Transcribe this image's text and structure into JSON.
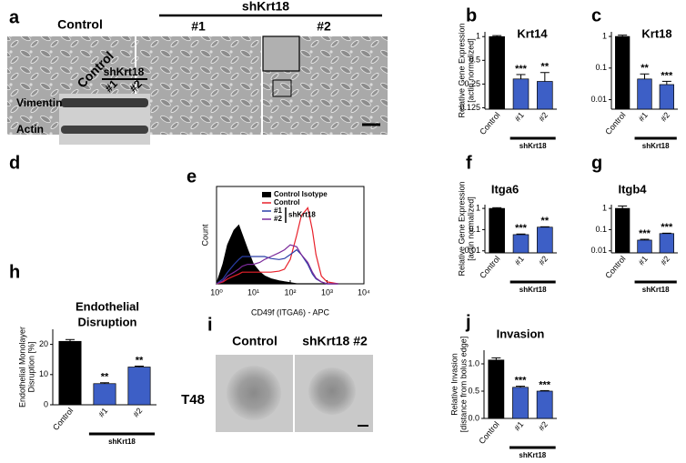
{
  "panel_a": {
    "letter": "a",
    "columns": [
      "Control",
      "#1",
      "#2"
    ],
    "group_label": "shKrt18"
  },
  "panel_d": {
    "letter": "d",
    "lanes": [
      "Control",
      "#1",
      "#2"
    ],
    "group_label": "shKrt18",
    "rows": [
      "Vimentin",
      "Actin"
    ]
  },
  "panel_i": {
    "letter": "i",
    "columns": [
      "Control",
      "shKrt18 #2"
    ],
    "row_label": "T48"
  },
  "chart_data": [
    {
      "type": "bar",
      "letter": "b",
      "title": [
        "Krt14"
      ],
      "ylabel": [
        "Relative Gene Expression",
        "[actin normalized]"
      ],
      "categories": [
        "Control",
        "#1",
        "#2"
      ],
      "group_label": "shKrt18",
      "values": [
        1.0,
        0.29,
        0.27
      ],
      "errors": [
        0.03,
        0.04,
        0.08
      ],
      "annotations": [
        null,
        "***",
        "**"
      ],
      "colors": [
        "#000000",
        "#3d5fc6",
        "#3d5fc6"
      ],
      "log": true,
      "ylim": [
        0.12,
        1.15
      ],
      "yticks": [
        1,
        0.5,
        0.25,
        0.125
      ]
    },
    {
      "type": "bar",
      "letter": "c",
      "title": [
        "Krt18"
      ],
      "ylabel": [],
      "categories": [
        "Control",
        "#1",
        "#2"
      ],
      "group_label": "shKrt18",
      "values": [
        1.0,
        0.045,
        0.03
      ],
      "errors": [
        0.1,
        0.02,
        0.008
      ],
      "annotations": [
        null,
        "**",
        "***"
      ],
      "colors": [
        "#000000",
        "#3d5fc6",
        "#3d5fc6"
      ],
      "log": true,
      "ylim": [
        0.005,
        1.4
      ],
      "yticks": [
        1,
        0.1,
        0.01
      ]
    },
    {
      "type": "line",
      "letter": "e",
      "xlabel": "CD49f (ITGA6) - APC",
      "ylabel": "Count",
      "log_x": true,
      "legend_group_label": "shKrt18",
      "x": [
        1,
        1.5,
        2,
        3,
        4,
        5,
        7,
        10,
        15,
        20,
        30,
        50,
        70,
        100,
        150,
        200,
        300,
        400,
        500,
        700,
        1000,
        2000
      ],
      "xlim": [
        1,
        10000
      ],
      "xticks": [
        {
          "value": 1,
          "label": "10⁰"
        },
        {
          "value": 10,
          "label": "10¹"
        },
        {
          "value": 100,
          "label": "10²"
        },
        {
          "value": 1000,
          "label": "10³"
        },
        {
          "value": 10000,
          "label": "10⁴"
        }
      ],
      "ylim": [
        0,
        100
      ],
      "series": [
        {
          "name": "Control Isotype",
          "color": "#000000",
          "filled": true,
          "values": [
            0,
            20,
            40,
            55,
            60,
            50,
            35,
            20,
            12,
            8,
            5,
            3,
            2,
            1,
            0,
            0,
            0,
            0,
            0,
            0,
            0,
            0
          ]
        },
        {
          "name": "Control",
          "color": "#e8202a",
          "filled": false,
          "values": [
            0,
            2,
            5,
            8,
            10,
            12,
            12,
            12,
            12,
            12,
            12,
            13,
            15,
            25,
            50,
            70,
            78,
            55,
            30,
            8,
            2,
            0
          ]
        },
        {
          "name": "#1",
          "color": "#2a3fa8",
          "filled": false,
          "values": [
            0,
            5,
            12,
            20,
            25,
            28,
            28,
            28,
            28,
            28,
            26,
            25,
            26,
            30,
            35,
            30,
            20,
            10,
            5,
            2,
            0,
            0
          ]
        },
        {
          "name": "#2",
          "color": "#7b2a9a",
          "filled": false,
          "values": [
            0,
            3,
            8,
            12,
            15,
            18,
            20,
            20,
            22,
            25,
            28,
            32,
            35,
            40,
            38,
            30,
            22,
            12,
            6,
            2,
            0,
            0
          ]
        }
      ]
    },
    {
      "type": "bar",
      "letter": "f",
      "title": [
        "Itga6"
      ],
      "ylabel": [
        "Relative Gene Expression",
        "[actin normalized]"
      ],
      "categories": [
        "Control",
        "#1",
        "#2"
      ],
      "group_label": "shKrt18",
      "values": [
        1.0,
        0.058,
        0.13
      ],
      "errors": [
        0.08,
        0.004,
        0.006
      ],
      "annotations": [
        null,
        "***",
        "**"
      ],
      "colors": [
        "#000000",
        "#3d5fc6",
        "#3d5fc6"
      ],
      "log": true,
      "ylim": [
        0.008,
        1.5
      ],
      "yticks": [
        1,
        0.1,
        0.01
      ]
    },
    {
      "type": "bar",
      "letter": "g",
      "title": [
        "Itgb4"
      ],
      "ylabel": [],
      "categories": [
        "Control",
        "#1",
        "#2"
      ],
      "group_label": "shKrt18",
      "values": [
        1.0,
        0.032,
        0.065
      ],
      "errors": [
        0.3,
        0.003,
        0.003
      ],
      "annotations": [
        null,
        "***",
        "***"
      ],
      "colors": [
        "#000000",
        "#3d5fc6",
        "#3d5fc6"
      ],
      "log": true,
      "ylim": [
        0.008,
        1.5
      ],
      "yticks": [
        1,
        0.1,
        0.01
      ]
    },
    {
      "type": "bar",
      "letter": "h",
      "title": [
        "Endothelial",
        "Disruption"
      ],
      "ylabel": [
        "Endothelial Monolayer",
        "Disruption [%]"
      ],
      "categories": [
        "Control",
        "#1",
        "#2"
      ],
      "group_label": "shKrt18",
      "values": [
        21,
        7,
        12.5
      ],
      "errors": [
        0.6,
        0.3,
        0.3
      ],
      "annotations": [
        null,
        "**",
        "**"
      ],
      "colors": [
        "#000000",
        "#3d5fc6",
        "#3d5fc6"
      ],
      "log": false,
      "ylim": [
        0,
        25
      ],
      "yticks": [
        0,
        10,
        20
      ]
    },
    {
      "type": "bar",
      "letter": "j",
      "title": [
        "Invasion"
      ],
      "ylabel": [
        "Relative Invasion",
        "[distance from bolus edge]"
      ],
      "categories": [
        "Control",
        "#1",
        "#2"
      ],
      "group_label": "shKrt18",
      "values": [
        1.07,
        0.57,
        0.5
      ],
      "errors": [
        0.04,
        0.02,
        0.01
      ],
      "annotations": [
        null,
        "***",
        "***"
      ],
      "colors": [
        "#000000",
        "#3d5fc6",
        "#3d5fc6"
      ],
      "log": false,
      "ylim": [
        0,
        1.25
      ],
      "yticks": [
        {
          "value": 0,
          "label": "0.0"
        },
        0.5,
        {
          "value": 1,
          "label": "1.0"
        }
      ]
    }
  ]
}
